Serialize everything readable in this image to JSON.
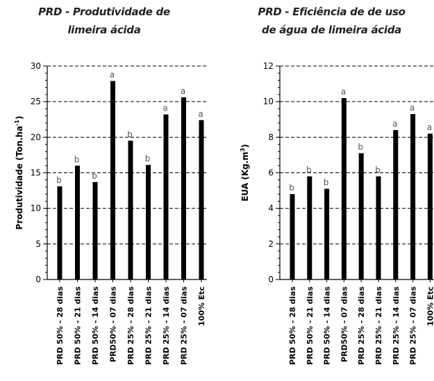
{
  "chart_data": [
    {
      "type": "bar",
      "title_lines": [
        "PRD - Produtividade de",
        "limeira ácida"
      ],
      "ylabel": "Produtividade (Ton.ha",
      "ylabel_sup": "-1",
      "ylabel_close": ")",
      "ylim": [
        0,
        30
      ],
      "yticks": [
        "0",
        "5",
        "10",
        "15",
        "20",
        "25",
        "30"
      ],
      "grid": "dashed horizontal",
      "categories": [
        "PRD 50% - 28 dias",
        "PRD 50% - 21 dias",
        "PRD 50% - 14 dias",
        "PRD50% - 07 dias",
        "PRD 25% - 28 dias",
        "PRD 25% - 21 dias",
        "PRD 25% - 14 dias",
        "PRD 25% - 07 dias",
        "100% Etc"
      ],
      "values": [
        13.1,
        16.0,
        13.7,
        27.9,
        19.5,
        16.1,
        23.2,
        25.6,
        22.4
      ],
      "letters": [
        "b",
        "b",
        "b",
        "a",
        "b",
        "b",
        "a",
        "a",
        "a"
      ],
      "bar_color": "#000000"
    },
    {
      "type": "bar",
      "title_lines": [
        "PRD - Eficiência de de uso",
        "de água de limeira ácida"
      ],
      "ylabel": "EUA (Kg.m",
      "ylabel_sup": "3",
      "ylabel_close": ")",
      "ylim": [
        0,
        12
      ],
      "yticks": [
        "0",
        "2",
        "4",
        "6",
        "8",
        "10",
        "12"
      ],
      "grid": "dashed horizontal",
      "categories": [
        "PRD 50% - 28 dias",
        "PRD 50% - 21 dias",
        "PRD 50% - 14 dias",
        "PRD50% - 07 dias",
        "PRD 25% - 28 dias",
        "PRD 25% - 21 dias",
        "PRD 25% - 14 dias",
        "PRD 25% - 07 dias",
        "100% Etc"
      ],
      "values": [
        4.8,
        5.8,
        5.1,
        10.2,
        7.1,
        5.8,
        8.4,
        9.3,
        8.2
      ],
      "letters": [
        "b",
        "b",
        "b",
        "a",
        "b",
        "b",
        "a",
        "a",
        "a"
      ],
      "bar_color": "#000000"
    }
  ]
}
